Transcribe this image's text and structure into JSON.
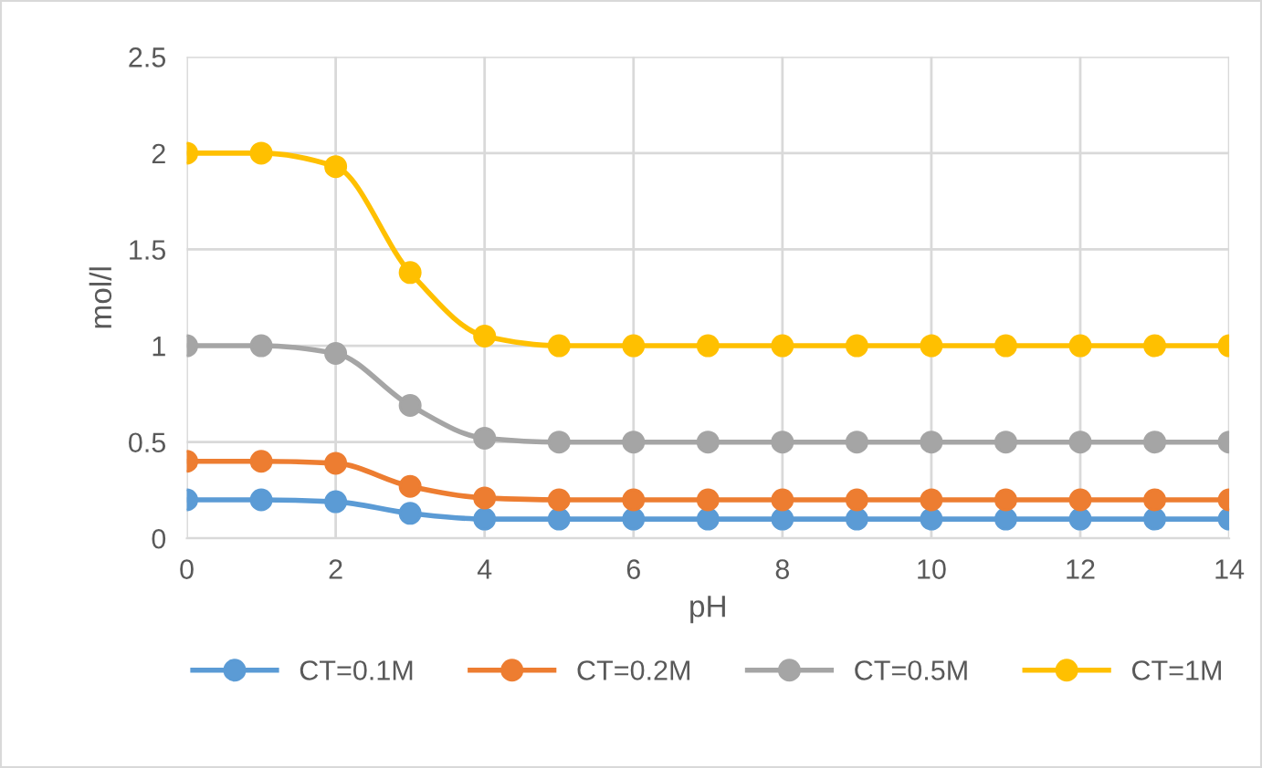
{
  "chart_data": {
    "type": "line",
    "xlabel": "pH",
    "ylabel": "mol/l",
    "x": [
      0,
      1,
      2,
      3,
      4,
      5,
      6,
      7,
      8,
      9,
      10,
      11,
      12,
      13,
      14
    ],
    "series": [
      {
        "name": "CT=0.1M",
        "color": "#5b9bd5",
        "values": [
          0.2,
          0.2,
          0.19,
          0.13,
          0.1,
          0.1,
          0.1,
          0.1,
          0.1,
          0.1,
          0.1,
          0.1,
          0.1,
          0.1,
          0.1
        ]
      },
      {
        "name": "CT=0.2M",
        "color": "#ed7d31",
        "values": [
          0.4,
          0.4,
          0.39,
          0.27,
          0.21,
          0.2,
          0.2,
          0.2,
          0.2,
          0.2,
          0.2,
          0.2,
          0.2,
          0.2,
          0.2
        ]
      },
      {
        "name": "CT=0.5M",
        "color": "#a5a5a5",
        "values": [
          1.0,
          1.0,
          0.96,
          0.69,
          0.52,
          0.5,
          0.5,
          0.5,
          0.5,
          0.5,
          0.5,
          0.5,
          0.5,
          0.5,
          0.5
        ]
      },
      {
        "name": "CT=1M",
        "color": "#ffc000",
        "values": [
          2.0,
          2.0,
          1.93,
          1.38,
          1.05,
          1.0,
          1.0,
          1.0,
          1.0,
          1.0,
          1.0,
          1.0,
          1.0,
          1.0,
          1.0
        ]
      }
    ],
    "xlim": [
      0,
      14
    ],
    "xticks": [
      0,
      2,
      4,
      6,
      8,
      10,
      12,
      14
    ],
    "ylim": [
      0,
      2.5
    ],
    "yticks": [
      0,
      0.5,
      1,
      1.5,
      2,
      2.5
    ],
    "grid": true,
    "legend": "bottom",
    "marker": "circle",
    "line_style": "solid"
  }
}
